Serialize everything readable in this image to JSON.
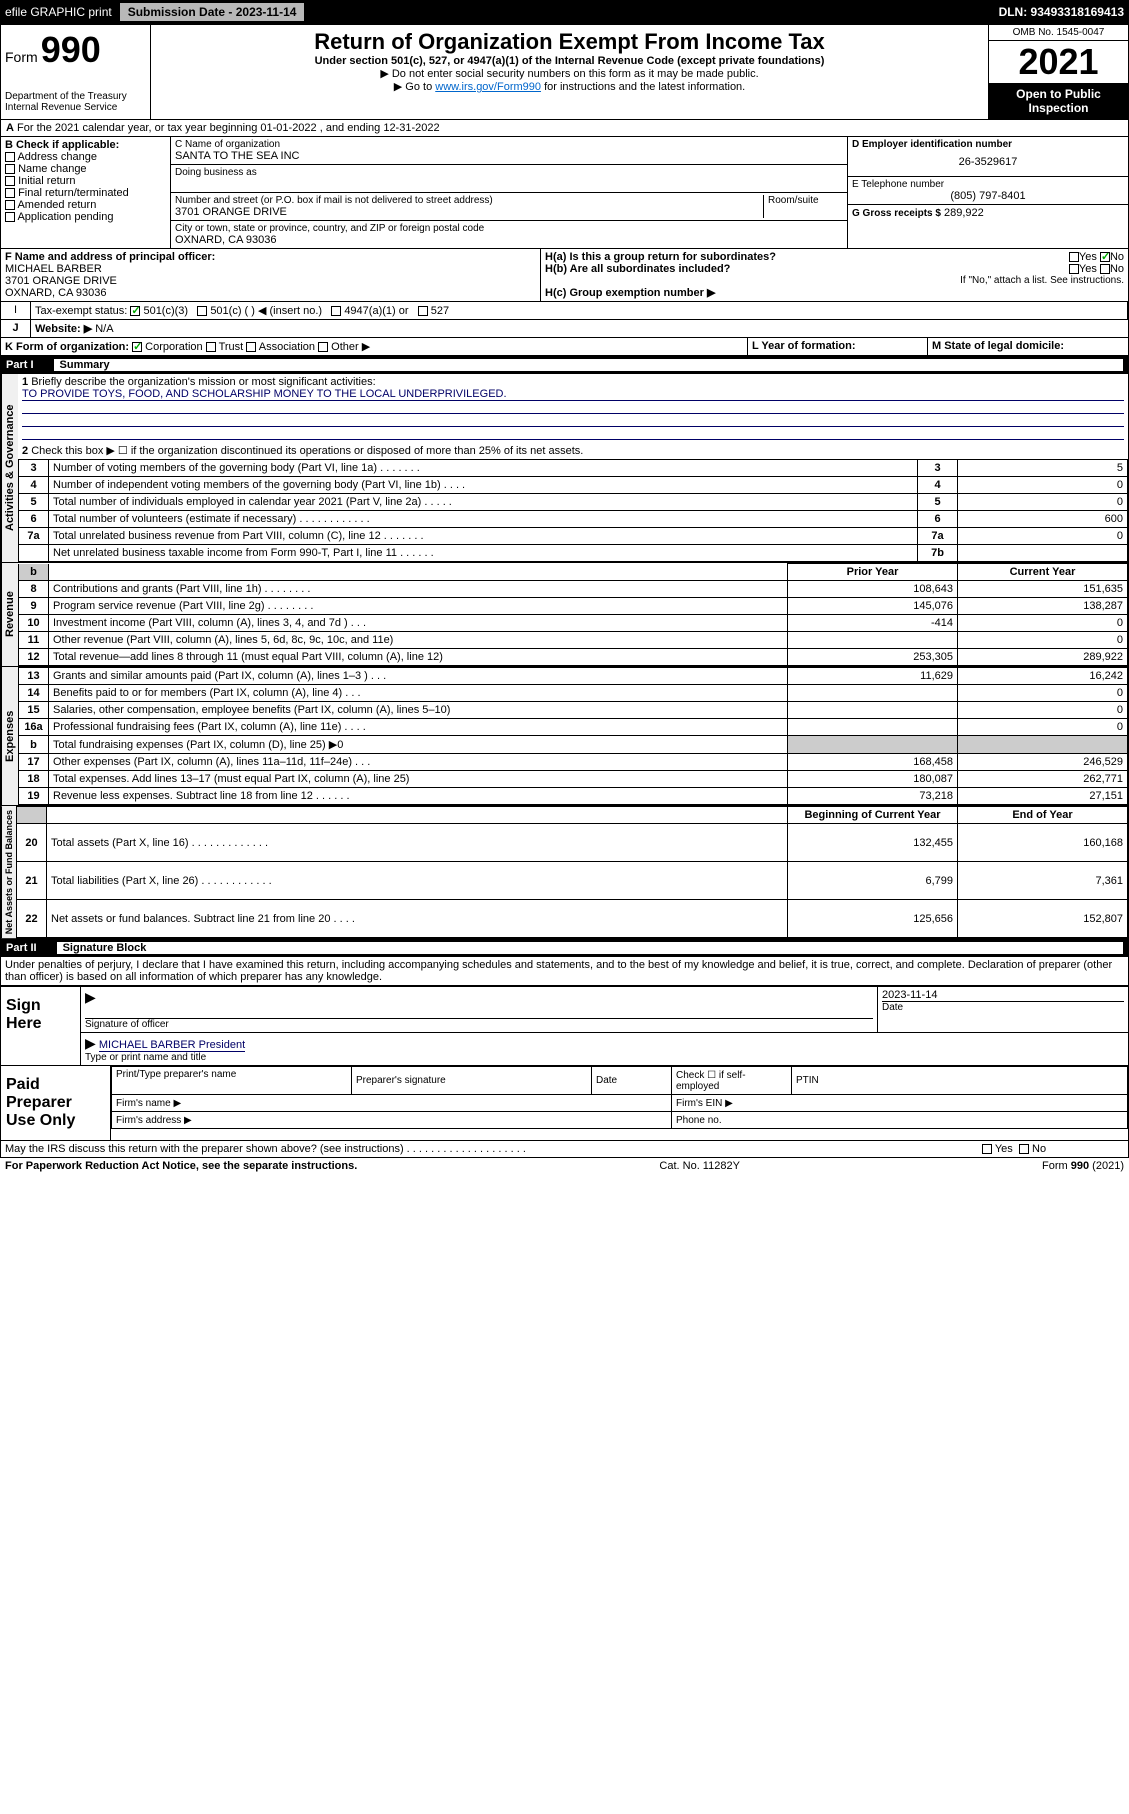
{
  "topbar": {
    "efile": "efile GRAPHIC print",
    "submission_label": "Submission Date - 2023-11-14",
    "dln": "DLN: 93493318169413"
  },
  "header": {
    "form_label": "Form",
    "form_number": "990",
    "dept": "Department of the Treasury",
    "irs": "Internal Revenue Service",
    "title": "Return of Organization Exempt From Income Tax",
    "subtitle": "Under section 501(c), 527, or 4947(a)(1) of the Internal Revenue Code (except private foundations)",
    "warn1": "▶ Do not enter social security numbers on this form as it may be made public.",
    "warn2_pre": "▶ Go to ",
    "warn2_link": "www.irs.gov/Form990",
    "warn2_post": " for instructions and the latest information.",
    "omb": "OMB No. 1545-0047",
    "year": "2021",
    "open": "Open to Public Inspection"
  },
  "sectionA": {
    "calendar": "For the 2021 calendar year, or tax year beginning 01-01-2022   , and ending 12-31-2022",
    "b_header": "B Check if applicable:",
    "b_items": [
      "Address change",
      "Name change",
      "Initial return",
      "Final return/terminated",
      "Amended return",
      "Application pending"
    ],
    "c_label": "C Name of organization",
    "c_name": "SANTA TO THE SEA INC",
    "dba": "Doing business as",
    "street_label": "Number and street (or P.O. box if mail is not delivered to street address)",
    "room_label": "Room/suite",
    "street": "3701 ORANGE DRIVE",
    "city_label": "City or town, state or province, country, and ZIP or foreign postal code",
    "city": "OXNARD, CA  93036",
    "d_label": "D Employer identification number",
    "d_value": "26-3529617",
    "e_label": "E Telephone number",
    "e_value": "(805) 797-8401",
    "g_label": "G Gross receipts $",
    "g_value": "289,922",
    "f_label": "F Name and address of principal officer:",
    "f_name": "MICHAEL BARBER",
    "f_addr1": "3701 ORANGE DRIVE",
    "f_addr2": "OXNARD, CA  93036",
    "ha_label": "H(a)  Is this a group return for subordinates?",
    "hb_label": "H(b)  Are all subordinates included?",
    "h_note": "If \"No,\" attach a list. See instructions.",
    "hc_label": "H(c)  Group exemption number ▶",
    "yes": "Yes",
    "no": "No",
    "i_label": "Tax-exempt status:",
    "i_501c3": "501(c)(3)",
    "i_501c": "501(c) (   ) ◀ (insert no.)",
    "i_4947": "4947(a)(1) or",
    "i_527": "527",
    "j_label": "Website: ▶",
    "j_value": "N/A",
    "k_label": "K Form of organization:",
    "k_corp": "Corporation",
    "k_trust": "Trust",
    "k_assoc": "Association",
    "k_other": "Other ▶",
    "l_label": "L Year of formation:",
    "m_label": "M State of legal domicile:"
  },
  "part1": {
    "header_label": "Part I",
    "header_title": "Summary",
    "line1_label": "Briefly describe the organization's mission or most significant activities:",
    "line1_text": "TO PROVIDE TOYS, FOOD, AND SCHOLARSHIP MONEY TO THE LOCAL UNDERPRIVILEGED.",
    "line2": "Check this box ▶ ☐ if the organization discontinued its operations or disposed of more than 25% of its net assets.",
    "governance_label": "Activities & Governance",
    "revenue_label": "Revenue",
    "expenses_label": "Expenses",
    "net_label": "Net Assets or Fund Balances",
    "prior_year": "Prior Year",
    "current_year": "Current Year",
    "begin_year": "Beginning of Current Year",
    "end_year": "End of Year",
    "rows_top": [
      {
        "n": "3",
        "label": "Number of voting members of the governing body (Part VI, line 1a)   .   .   .   .   .   .   .",
        "box": "3",
        "val": "5"
      },
      {
        "n": "4",
        "label": "Number of independent voting members of the governing body (Part VI, line 1b)  .   .   .   .",
        "box": "4",
        "val": "0"
      },
      {
        "n": "5",
        "label": "Total number of individuals employed in calendar year 2021 (Part V, line 2a)   .   .   .   .   .",
        "box": "5",
        "val": "0"
      },
      {
        "n": "6",
        "label": "Total number of volunteers (estimate if necessary)   .   .   .   .   .   .   .   .   .   .   .   .",
        "box": "6",
        "val": "600"
      },
      {
        "n": "7a",
        "label": "Total unrelated business revenue from Part VIII, column (C), line 12   .   .   .   .   .   .   .",
        "box": "7a",
        "val": "0"
      },
      {
        "n": "",
        "label": "Net unrelated business taxable income from Form 990-T, Part I, line 11   .   .   .   .   .   .",
        "box": "7b",
        "val": ""
      }
    ],
    "rows_rev": [
      {
        "n": "8",
        "label": "Contributions and grants (Part VIII, line 1h)   .   .   .   .   .   .   .   .",
        "py": "108,643",
        "cy": "151,635"
      },
      {
        "n": "9",
        "label": "Program service revenue (Part VIII, line 2g)   .   .   .   .   .   .   .   .",
        "py": "145,076",
        "cy": "138,287"
      },
      {
        "n": "10",
        "label": "Investment income (Part VIII, column (A), lines 3, 4, and 7d )   .   .   .",
        "py": "-414",
        "cy": "0"
      },
      {
        "n": "11",
        "label": "Other revenue (Part VIII, column (A), lines 5, 6d, 8c, 9c, 10c, and 11e)",
        "py": "",
        "cy": "0"
      },
      {
        "n": "12",
        "label": "Total revenue—add lines 8 through 11 (must equal Part VIII, column (A), line 12)",
        "py": "253,305",
        "cy": "289,922"
      }
    ],
    "rows_exp": [
      {
        "n": "13",
        "label": "Grants and similar amounts paid (Part IX, column (A), lines 1–3 )   .   .   .",
        "py": "11,629",
        "cy": "16,242"
      },
      {
        "n": "14",
        "label": "Benefits paid to or for members (Part IX, column (A), line 4)   .   .   .",
        "py": "",
        "cy": "0"
      },
      {
        "n": "15",
        "label": "Salaries, other compensation, employee benefits (Part IX, column (A), lines 5–10)",
        "py": "",
        "cy": "0"
      },
      {
        "n": "16a",
        "label": "Professional fundraising fees (Part IX, column (A), line 11e)   .   .   .   .",
        "py": "",
        "cy": "0"
      },
      {
        "n": "b",
        "label": "Total fundraising expenses (Part IX, column (D), line 25) ▶0",
        "py": "grey",
        "cy": "grey"
      },
      {
        "n": "17",
        "label": "Other expenses (Part IX, column (A), lines 11a–11d, 11f–24e)   .   .   .",
        "py": "168,458",
        "cy": "246,529"
      },
      {
        "n": "18",
        "label": "Total expenses. Add lines 13–17 (must equal Part IX, column (A), line 25)",
        "py": "180,087",
        "cy": "262,771"
      },
      {
        "n": "19",
        "label": "Revenue less expenses. Subtract line 18 from line 12   .   .   .   .   .   .",
        "py": "73,218",
        "cy": "27,151"
      }
    ],
    "rows_net": [
      {
        "n": "20",
        "label": "Total assets (Part X, line 16)   .   .   .   .   .   .   .   .   .   .   .   .   .",
        "py": "132,455",
        "cy": "160,168"
      },
      {
        "n": "21",
        "label": "Total liabilities (Part X, line 26)   .   .   .   .   .   .   .   .   .   .   .   .",
        "py": "6,799",
        "cy": "7,361"
      },
      {
        "n": "22",
        "label": "Net assets or fund balances. Subtract line 21 from line 20   .   .   .   .",
        "py": "125,656",
        "cy": "152,807"
      }
    ]
  },
  "part2": {
    "header_label": "Part II",
    "header_title": "Signature Block",
    "penalties": "Under penalties of perjury, I declare that I have examined this return, including accompanying schedules and statements, and to the best of my knowledge and belief, it is true, correct, and complete. Declaration of preparer (other than officer) is based on all information of which preparer has any knowledge.",
    "sign_here": "Sign Here",
    "sig_officer": "Signature of officer",
    "sig_date": "2023-11-14",
    "date_label": "Date",
    "officer_name": "MICHAEL BARBER President",
    "type_label": "Type or print name and title",
    "paid_prep": "Paid Preparer Use Only",
    "print_name": "Print/Type preparer's name",
    "prep_sig": "Preparer's signature",
    "check_self": "Check ☐ if self-employed",
    "ptin": "PTIN",
    "firm_name": "Firm's name    ▶",
    "firm_ein": "Firm's EIN ▶",
    "firm_addr": "Firm's address ▶",
    "phone": "Phone no.",
    "may_irs": "May the IRS discuss this return with the preparer shown above? (see instructions)   .   .   .   .   .   .   .   .   .   .   .   .   .   .   .   .   .   .   .   ."
  },
  "footer": {
    "paperwork": "For Paperwork Reduction Act Notice, see the separate instructions.",
    "cat": "Cat. No. 11282Y",
    "form": "Form 990 (2021)"
  }
}
